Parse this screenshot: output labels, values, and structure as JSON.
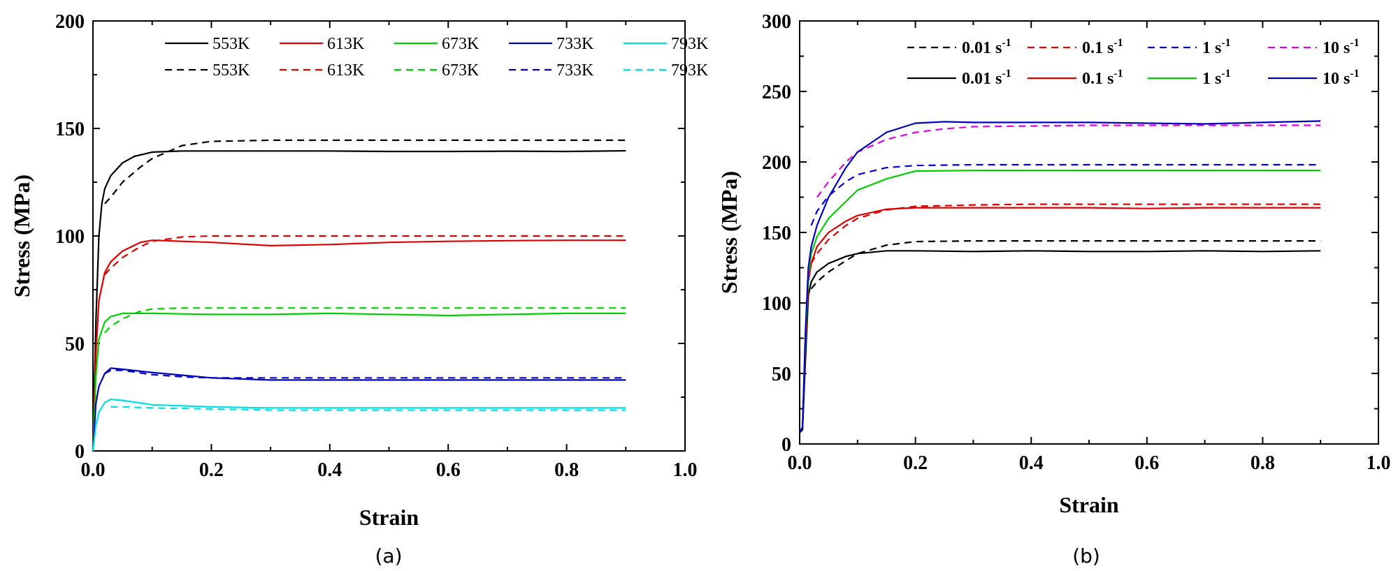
{
  "chart_data": [
    {
      "type": "line",
      "panel_label": "(a)",
      "xlabel": "Strain",
      "ylabel": "Stress (MPa)",
      "xlim": [
        0,
        1.0
      ],
      "ylim": [
        0,
        200
      ],
      "xticks": [
        "0.0",
        "0.2",
        "0.4",
        "0.6",
        "0.8",
        "1.0"
      ],
      "xtick_values": [
        0,
        0.2,
        0.4,
        0.6,
        0.8,
        1.0
      ],
      "yticks": [
        "0",
        "50",
        "100",
        "150",
        "200"
      ],
      "ytick_values": [
        0,
        50,
        100,
        150,
        200
      ],
      "legend_position": "top",
      "series": [
        {
          "name": "553K",
          "style": "solid",
          "color": "#000000",
          "x": [
            0,
            0.005,
            0.01,
            0.015,
            0.02,
            0.03,
            0.05,
            0.07,
            0.1,
            0.15,
            0.2,
            0.3,
            0.4,
            0.5,
            0.6,
            0.7,
            0.8,
            0.9
          ],
          "y": [
            0,
            60,
            100,
            115,
            122,
            128,
            134,
            137,
            139,
            139.5,
            139.5,
            139.5,
            139.5,
            139.3,
            139.3,
            139.4,
            139.3,
            139.6
          ]
        },
        {
          "name": "613K",
          "style": "solid",
          "color": "#e00000",
          "x": [
            0,
            0.005,
            0.01,
            0.02,
            0.03,
            0.05,
            0.08,
            0.1,
            0.15,
            0.2,
            0.3,
            0.4,
            0.5,
            0.6,
            0.7,
            0.8,
            0.9
          ],
          "y": [
            0,
            45,
            70,
            83,
            88,
            93,
            97,
            98,
            97.5,
            97,
            95.5,
            96,
            97,
            97.5,
            97.8,
            98,
            98
          ]
        },
        {
          "name": "673K",
          "style": "solid",
          "color": "#00d000",
          "x": [
            0,
            0.005,
            0.01,
            0.02,
            0.03,
            0.05,
            0.1,
            0.2,
            0.3,
            0.4,
            0.5,
            0.6,
            0.7,
            0.8,
            0.9
          ],
          "y": [
            0,
            35,
            52,
            60,
            62.5,
            64,
            64,
            63.5,
            63.5,
            64,
            63.5,
            63,
            63.5,
            64,
            64
          ]
        },
        {
          "name": "733K",
          "style": "solid",
          "color": "#0000c0",
          "x": [
            0,
            0.005,
            0.01,
            0.02,
            0.03,
            0.05,
            0.1,
            0.2,
            0.3,
            0.4,
            0.5,
            0.6,
            0.7,
            0.8,
            0.9
          ],
          "y": [
            0,
            22,
            30,
            36,
            38.5,
            38,
            36.5,
            34,
            33,
            33,
            33,
            33,
            33,
            33,
            33
          ]
        },
        {
          "name": "793K",
          "style": "solid",
          "color": "#00e0e0",
          "x": [
            0,
            0.005,
            0.01,
            0.02,
            0.03,
            0.05,
            0.1,
            0.2,
            0.3,
            0.4,
            0.5,
            0.6,
            0.7,
            0.8,
            0.9
          ],
          "y": [
            0,
            12,
            18,
            22.5,
            24,
            23.5,
            21.5,
            20.5,
            20,
            20,
            20,
            20,
            20,
            20,
            20
          ]
        },
        {
          "name": "553K",
          "style": "dashed",
          "color": "#000000",
          "x": [
            0.02,
            0.03,
            0.05,
            0.08,
            0.1,
            0.15,
            0.2,
            0.3,
            0.4,
            0.5,
            0.6,
            0.7,
            0.8,
            0.9
          ],
          "y": [
            115,
            118,
            125,
            132,
            136,
            142,
            144,
            144.5,
            144.5,
            144.5,
            144.5,
            144.5,
            144.5,
            144.5
          ]
        },
        {
          "name": "613K",
          "style": "dashed",
          "color": "#e00000",
          "x": [
            0.02,
            0.03,
            0.05,
            0.08,
            0.1,
            0.15,
            0.2,
            0.3,
            0.4,
            0.5,
            0.6,
            0.7,
            0.8,
            0.9
          ],
          "y": [
            82,
            85,
            90,
            95,
            97.5,
            99.5,
            100,
            100,
            100,
            100,
            100,
            100,
            100,
            100
          ]
        },
        {
          "name": "673K",
          "style": "dashed",
          "color": "#00d000",
          "x": [
            0.02,
            0.03,
            0.05,
            0.08,
            0.1,
            0.15,
            0.2,
            0.3,
            0.4,
            0.5,
            0.6,
            0.7,
            0.8,
            0.9
          ],
          "y": [
            55,
            58,
            61.5,
            65,
            66,
            66.5,
            66.5,
            66.5,
            66.5,
            66.5,
            66.5,
            66.5,
            66.5,
            66.5
          ]
        },
        {
          "name": "733K",
          "style": "dashed",
          "color": "#0000c0",
          "x": [
            0.02,
            0.03,
            0.05,
            0.1,
            0.15,
            0.2,
            0.3,
            0.4,
            0.5,
            0.6,
            0.7,
            0.8,
            0.9
          ],
          "y": [
            36,
            37.5,
            37.5,
            35.5,
            34.5,
            34,
            34,
            34,
            34,
            34,
            34,
            34,
            34
          ]
        },
        {
          "name": "793K",
          "style": "dashed",
          "color": "#00e0e0",
          "x": [
            0.03,
            0.05,
            0.1,
            0.2,
            0.3,
            0.4,
            0.5,
            0.6,
            0.7,
            0.8,
            0.9
          ],
          "y": [
            20.5,
            20.5,
            20,
            19.5,
            19,
            19,
            19,
            19,
            19,
            19,
            19
          ]
        }
      ]
    },
    {
      "type": "line",
      "panel_label": "(b)",
      "xlabel": "Strain",
      "ylabel": "Stress (MPa)",
      "xlim": [
        0,
        1.0
      ],
      "ylim": [
        0,
        300
      ],
      "xticks": [
        "0.0",
        "0.2",
        "0.4",
        "0.6",
        "0.8",
        "1.0"
      ],
      "xtick_values": [
        0,
        0.2,
        0.4,
        0.6,
        0.8,
        1.0
      ],
      "yticks": [
        "0",
        "50",
        "100",
        "150",
        "200",
        "250",
        "300"
      ],
      "ytick_values": [
        0,
        50,
        100,
        150,
        200,
        250,
        300
      ],
      "legend_position": "top",
      "legend_unit": "s",
      "legend_exponent": "-1",
      "series": [
        {
          "name": "0.01",
          "style": "dashed",
          "color": "#000000",
          "x": [
            0.02,
            0.03,
            0.05,
            0.08,
            0.1,
            0.15,
            0.2,
            0.3,
            0.4,
            0.5,
            0.6,
            0.7,
            0.8,
            0.9
          ],
          "y": [
            110,
            115,
            122,
            130,
            135,
            141,
            143.5,
            144,
            144,
            144,
            144,
            144,
            144,
            144
          ]
        },
        {
          "name": "0.1",
          "style": "dashed",
          "color": "#e00000",
          "x": [
            0.02,
            0.03,
            0.05,
            0.08,
            0.1,
            0.15,
            0.2,
            0.3,
            0.4,
            0.5,
            0.6,
            0.7,
            0.8,
            0.9
          ],
          "y": [
            128,
            135,
            145,
            155,
            160,
            166,
            168.5,
            169.5,
            170,
            170,
            170,
            170,
            170,
            170
          ]
        },
        {
          "name": "1",
          "style": "dashed",
          "color": "#0000e0",
          "x": [
            0.02,
            0.03,
            0.05,
            0.08,
            0.1,
            0.15,
            0.2,
            0.3,
            0.4,
            0.5,
            0.6,
            0.7,
            0.8,
            0.9
          ],
          "y": [
            155,
            165,
            176,
            186,
            191,
            196,
            197.5,
            198,
            198,
            198,
            198,
            198,
            198,
            198
          ]
        },
        {
          "name": "10",
          "style": "dashed",
          "color": "#e000e0",
          "x": [
            0.03,
            0.05,
            0.08,
            0.1,
            0.15,
            0.2,
            0.25,
            0.3,
            0.4,
            0.5,
            0.6,
            0.7,
            0.8,
            0.9
          ],
          "y": [
            175,
            186,
            200,
            207,
            216,
            221,
            223.5,
            225,
            225.5,
            226,
            226,
            226,
            226,
            226
          ]
        },
        {
          "name": "0.01",
          "style": "solid",
          "color": "#000000",
          "x": [
            0,
            0.005,
            0.01,
            0.015,
            0.02,
            0.03,
            0.05,
            0.08,
            0.1,
            0.15,
            0.2,
            0.3,
            0.4,
            0.5,
            0.6,
            0.7,
            0.8,
            0.9
          ],
          "y": [
            8,
            10,
            60,
            105,
            115,
            122,
            128,
            133,
            135,
            137,
            137,
            136.5,
            137,
            136.5,
            136.5,
            137,
            136.5,
            137
          ]
        },
        {
          "name": "0.1",
          "style": "solid",
          "color": "#e00000",
          "x": [
            0,
            0.005,
            0.01,
            0.015,
            0.02,
            0.03,
            0.05,
            0.08,
            0.1,
            0.15,
            0.2,
            0.3,
            0.4,
            0.5,
            0.6,
            0.7,
            0.8,
            0.9
          ],
          "y": [
            8,
            12,
            70,
            115,
            128,
            140,
            150,
            158,
            162,
            166.5,
            167.5,
            167.5,
            167.5,
            167.5,
            167,
            167.5,
            167.5,
            167.5
          ]
        },
        {
          "name": "1",
          "style": "solid",
          "color": "#00d000",
          "x": [
            0,
            0.005,
            0.01,
            0.015,
            0.02,
            0.03,
            0.05,
            0.08,
            0.1,
            0.15,
            0.2,
            0.3,
            0.4,
            0.5,
            0.6,
            0.7,
            0.8,
            0.9
          ],
          "y": [
            8,
            12,
            75,
            120,
            135,
            147,
            160,
            172,
            180,
            188,
            193.5,
            194,
            194,
            194,
            194,
            194,
            194,
            194
          ]
        },
        {
          "name": "10",
          "style": "solid",
          "color": "#0000c0",
          "x": [
            0,
            0.005,
            0.01,
            0.015,
            0.02,
            0.03,
            0.05,
            0.08,
            0.1,
            0.15,
            0.2,
            0.25,
            0.3,
            0.4,
            0.5,
            0.6,
            0.7,
            0.8,
            0.9
          ],
          "y": [
            8,
            12,
            80,
            125,
            140,
            155,
            175,
            196,
            207,
            221,
            227.5,
            228.5,
            228,
            228,
            228,
            227.5,
            227,
            228,
            229
          ]
        }
      ]
    }
  ]
}
